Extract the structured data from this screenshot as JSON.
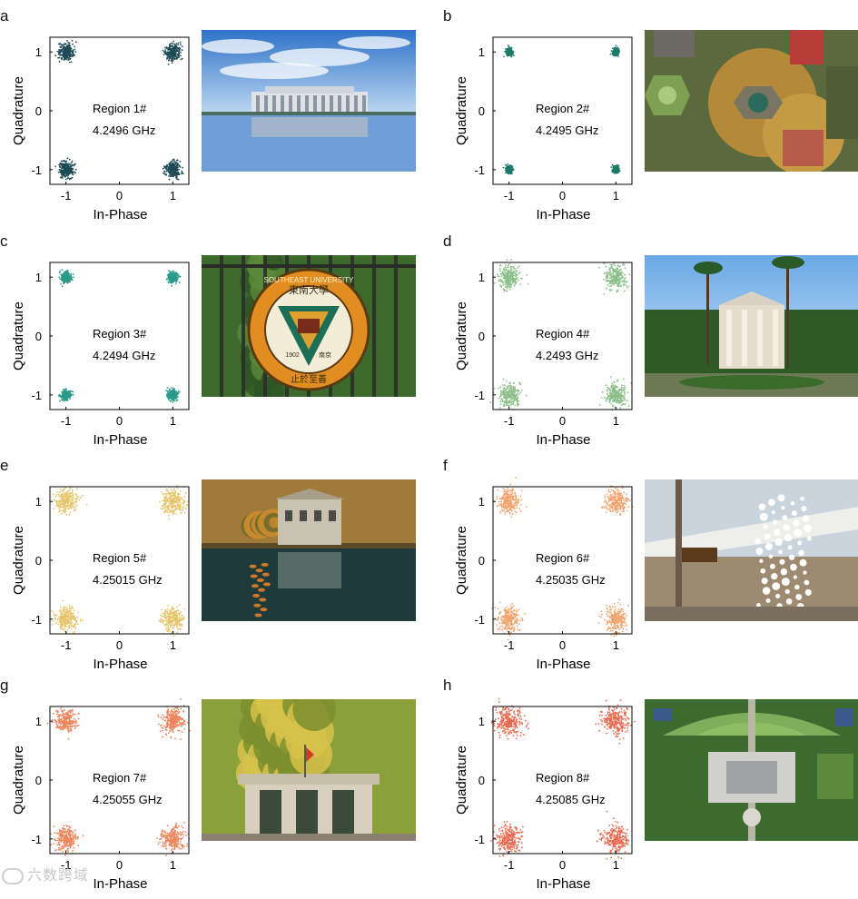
{
  "common": {
    "xlabel": "In-Phase",
    "ylabel": "Quadrature"
  },
  "watermark": {
    "text": "六数跨域"
  },
  "chart_data": [
    {
      "type": "scatter",
      "letter": "a",
      "region": "Region 1#",
      "freq": "4.2496 GHz",
      "color": "#1d4a55",
      "xlabel": "In-Phase",
      "ylabel": "Quadrature",
      "xlim": [
        -1.3,
        1.3
      ],
      "ylim": [
        -1.25,
        1.25
      ],
      "xticks": [
        -1,
        0,
        1
      ],
      "yticks": [
        -1,
        0,
        1
      ],
      "clusters": [
        {
          "x": -1,
          "y": 1
        },
        {
          "x": 1,
          "y": 1
        },
        {
          "x": -1,
          "y": -1
        },
        {
          "x": 1,
          "y": -1
        }
      ],
      "spread": 0.07,
      "photo": {
        "name": "library-reflection-photo",
        "scene": "library"
      }
    },
    {
      "type": "scatter",
      "letter": "b",
      "region": "Region 2#",
      "freq": "4.2495 GHz",
      "color": "#1f7a6a",
      "xlabel": "In-Phase",
      "ylabel": "Quadrature",
      "xlim": [
        -1.3,
        1.3
      ],
      "ylim": [
        -1.25,
        1.25
      ],
      "xticks": [
        -1,
        0,
        1
      ],
      "yticks": [
        -1,
        0,
        1
      ],
      "clusters": [
        {
          "x": -1,
          "y": 1
        },
        {
          "x": 1,
          "y": 1
        },
        {
          "x": -1,
          "y": -1
        },
        {
          "x": 1,
          "y": -1
        }
      ],
      "spread": 0.03,
      "photo": {
        "name": "campus-aerial-autumn-photo",
        "scene": "aerial-autumn"
      }
    },
    {
      "type": "scatter",
      "letter": "c",
      "region": "Region 3#",
      "freq": "4.2494 GHz",
      "color": "#2b9a8a",
      "xlabel": "In-Phase",
      "ylabel": "Quadrature",
      "xlim": [
        -1.3,
        1.3
      ],
      "ylim": [
        -1.25,
        1.25
      ],
      "xticks": [
        -1,
        0,
        1
      ],
      "yticks": [
        -1,
        0,
        1
      ],
      "clusters": [
        {
          "x": -1,
          "y": 1
        },
        {
          "x": 1,
          "y": 1
        },
        {
          "x": -1,
          "y": -1
        },
        {
          "x": 1,
          "y": -1
        }
      ],
      "spread": 0.045,
      "photo": {
        "name": "university-emblem-photo",
        "scene": "emblem",
        "emblem_top": "東南大學",
        "emblem_ring": "SOUTHEAST UNIVERSITY",
        "emblem_year": "1902",
        "emblem_city": "南京",
        "emblem_motto": "止於至善"
      }
    },
    {
      "type": "scatter",
      "letter": "d",
      "region": "Region 4#",
      "freq": "4.2493 GHz",
      "color": "#8cbf8a",
      "xlabel": "In-Phase",
      "ylabel": "Quadrature",
      "xlim": [
        -1.3,
        1.3
      ],
      "ylim": [
        -1.25,
        1.25
      ],
      "xticks": [
        -1,
        0,
        1
      ],
      "yticks": [
        -1,
        0,
        1
      ],
      "clusters": [
        {
          "x": -1,
          "y": 1
        },
        {
          "x": 1,
          "y": 1
        },
        {
          "x": -1,
          "y": -1
        },
        {
          "x": 1,
          "y": -1
        }
      ],
      "spread": 0.1,
      "photo": {
        "name": "columned-hall-photo",
        "scene": "hall"
      }
    },
    {
      "type": "scatter",
      "letter": "e",
      "region": "Region 5#",
      "freq": "4.25015 GHz",
      "color": "#e6c46a",
      "xlabel": "In-Phase",
      "ylabel": "Quadrature",
      "xlim": [
        -1.3,
        1.3
      ],
      "ylim": [
        -1.25,
        1.25
      ],
      "xticks": [
        -1,
        0,
        1
      ],
      "yticks": [
        -1,
        0,
        1
      ],
      "clusters": [
        {
          "x": -1,
          "y": 1
        },
        {
          "x": 1,
          "y": 1
        },
        {
          "x": -1,
          "y": -1
        },
        {
          "x": 1,
          "y": -1
        }
      ],
      "spread": 0.1,
      "photo": {
        "name": "building-pond-reflection-photo",
        "scene": "pond"
      }
    },
    {
      "type": "scatter",
      "letter": "f",
      "region": "Region 6#",
      "freq": "4.25035 GHz",
      "color": "#f2a46e",
      "xlabel": "In-Phase",
      "ylabel": "Quadrature",
      "xlim": [
        -1.3,
        1.3
      ],
      "ylim": [
        -1.25,
        1.25
      ],
      "xticks": [
        -1,
        0,
        1
      ],
      "yticks": [
        -1,
        0,
        1
      ],
      "clusters": [
        {
          "x": -1,
          "y": 1
        },
        {
          "x": 1,
          "y": 1
        },
        {
          "x": -1,
          "y": -1
        },
        {
          "x": 1,
          "y": -1
        }
      ],
      "spread": 0.1,
      "photo": {
        "name": "blossom-building-photo",
        "scene": "blossom"
      }
    },
    {
      "type": "scatter",
      "letter": "g",
      "region": "Region 7#",
      "freq": "4.25055 GHz",
      "color": "#ec845c",
      "xlabel": "In-Phase",
      "ylabel": "Quadrature",
      "xlim": [
        -1.3,
        1.3
      ],
      "ylim": [
        -1.25,
        1.25
      ],
      "xticks": [
        -1,
        0,
        1
      ],
      "yticks": [
        -1,
        0,
        1
      ],
      "clusters": [
        {
          "x": -1,
          "y": 1
        },
        {
          "x": 1,
          "y": 1
        },
        {
          "x": -1,
          "y": -1
        },
        {
          "x": 1,
          "y": -1
        }
      ],
      "spread": 0.1,
      "photo": {
        "name": "campus-gate-photo",
        "scene": "gate"
      }
    },
    {
      "type": "scatter",
      "letter": "h",
      "region": "Region 8#",
      "freq": "4.25085 GHz",
      "color": "#e8694f",
      "xlabel": "In-Phase",
      "ylabel": "Quadrature",
      "xlim": [
        -1.3,
        1.3
      ],
      "ylim": [
        -1.25,
        1.25
      ],
      "xticks": [
        -1,
        0,
        1
      ],
      "yticks": [
        -1,
        0,
        1
      ],
      "clusters": [
        {
          "x": -1,
          "y": 1
        },
        {
          "x": 1,
          "y": 1
        },
        {
          "x": -1,
          "y": -1
        },
        {
          "x": 1,
          "y": -1
        }
      ],
      "spread": 0.12,
      "photo": {
        "name": "campus-aerial-plaza-photo",
        "scene": "aerial-plaza"
      }
    }
  ]
}
